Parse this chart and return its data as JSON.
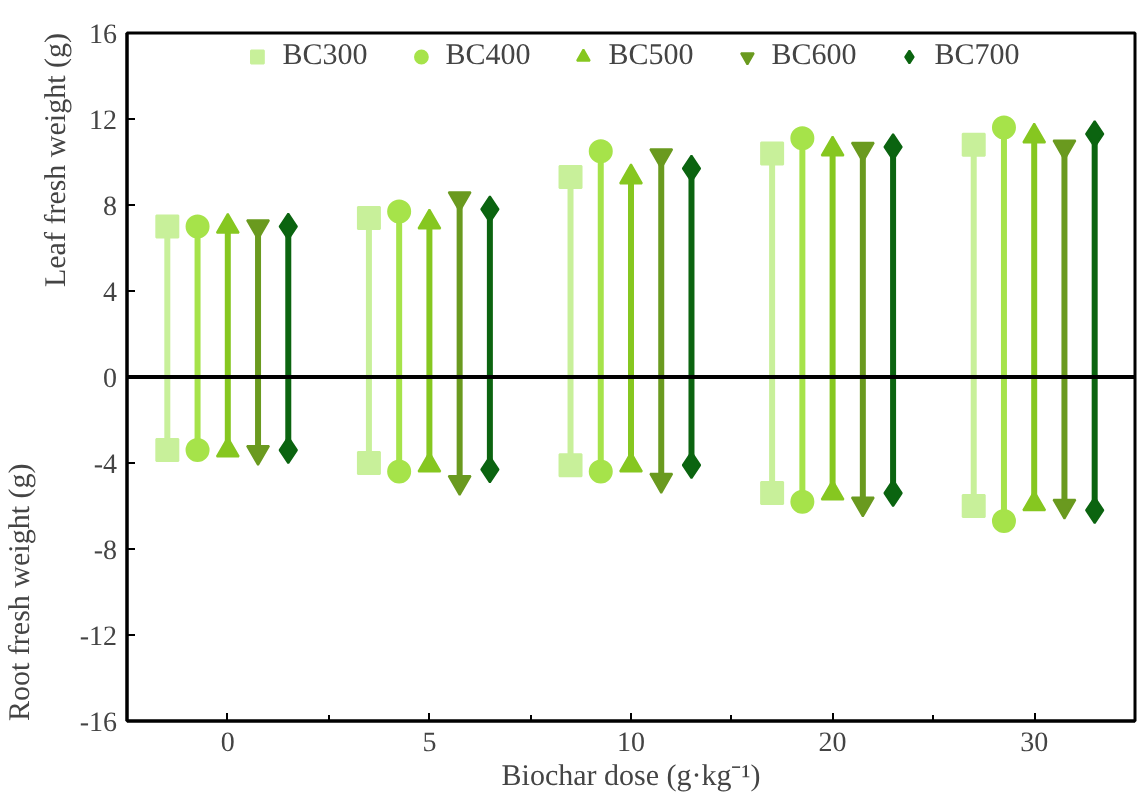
{
  "chart_data": {
    "type": "lollipop",
    "xlabel": "Biochar dose (g·kg⁻¹)",
    "ylabel": "Leaf fresh weight (g)",
    "annotations": [
      "Root fresh weight (g)"
    ],
    "categories": [
      "0",
      "5",
      "10",
      "20",
      "30"
    ],
    "ylim": [
      -16,
      16
    ],
    "yticks": [
      -16,
      -12,
      -8,
      -4,
      0,
      4,
      8,
      12,
      16
    ],
    "ref_lines": [
      {
        "axis": "y",
        "value": 0,
        "color": "#000000"
      }
    ],
    "legend": "top",
    "grid": false,
    "series": [
      {
        "name": "BC300",
        "color": "#c8f09a",
        "marker": "square",
        "values": [
          7.0,
          7.4,
          9.3,
          10.4,
          10.8
        ]
      },
      {
        "name": "BC400",
        "color": "#a6e34a",
        "marker": "circle",
        "values": [
          7.0,
          7.7,
          10.5,
          11.1,
          11.6
        ]
      },
      {
        "name": "BC500",
        "color": "#86c720",
        "marker": "triangle",
        "values": [
          7.0,
          7.2,
          9.3,
          10.6,
          11.2
        ]
      },
      {
        "name": "BC600",
        "color": "#6a9a1f",
        "marker": "triangle_down",
        "values": [
          7.0,
          8.3,
          10.3,
          10.6,
          10.7
        ]
      },
      {
        "name": "BC700",
        "color": "#0b6410",
        "marker": "diamond",
        "values": [
          7.0,
          7.8,
          9.7,
          10.7,
          11.3
        ]
      },
      {
        "color": "#c8f09a",
        "marker": "square",
        "values": [
          -3.4,
          -4.0,
          -4.1,
          -5.4,
          -6.0
        ]
      },
      {
        "color": "#a6e34a",
        "marker": "circle",
        "values": [
          -3.4,
          -4.4,
          -4.4,
          -5.8,
          -6.7
        ]
      },
      {
        "color": "#86c720",
        "marker": "triangle",
        "values": [
          -3.4,
          -4.1,
          -4.1,
          -5.4,
          -5.9
        ]
      },
      {
        "color": "#6a9a1f",
        "marker": "triangle_down",
        "values": [
          -3.5,
          -4.9,
          -4.8,
          -5.9,
          -6.0
        ]
      },
      {
        "color": "#0b6410",
        "marker": "diamond",
        "values": [
          -3.4,
          -4.3,
          -4.1,
          -5.4,
          -6.2
        ]
      }
    ]
  }
}
